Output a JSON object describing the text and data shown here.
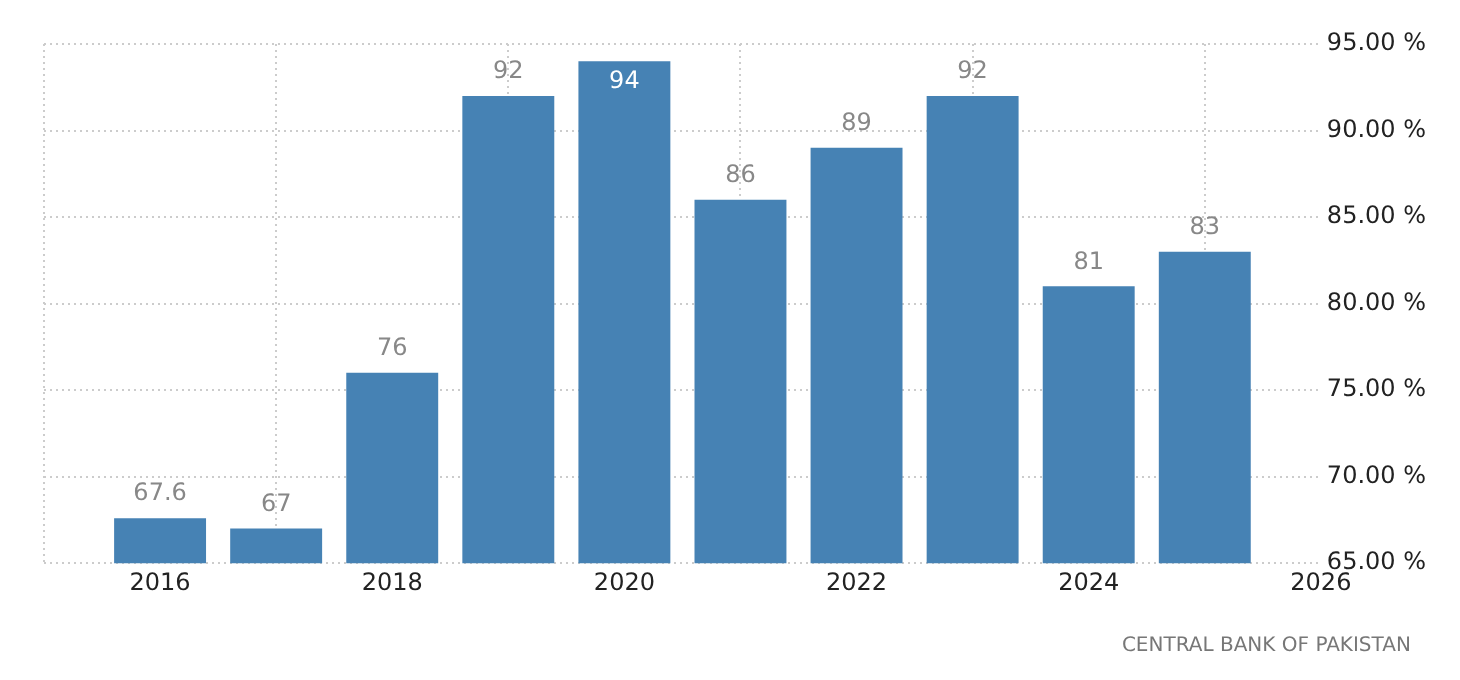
{
  "chart_data": {
    "type": "bar",
    "x": [
      2016,
      2017,
      2018,
      2019,
      2020,
      2021,
      2022,
      2023,
      2024,
      2025
    ],
    "values": [
      67.6,
      67,
      76,
      92,
      94,
      86,
      89,
      92,
      81,
      83
    ],
    "color": "#4682b4",
    "xlim": [
      2015,
      2026
    ],
    "xticks": [
      2016,
      2018,
      2020,
      2022,
      2024,
      2026
    ],
    "ylim": [
      65,
      95
    ],
    "yticks": [
      {
        "value": 65,
        "label": "65.00 %"
      },
      {
        "value": 70,
        "label": "70.00 %"
      },
      {
        "value": 75,
        "label": "75.00 %"
      },
      {
        "value": 80,
        "label": "80.00 %"
      },
      {
        "value": 85,
        "label": "85.00 %"
      },
      {
        "value": 90,
        "label": "90.00 %"
      },
      {
        "value": 95,
        "label": "95.00 %"
      }
    ],
    "grid": true,
    "legend": false,
    "data_labels": true,
    "annotations": [
      "CENTRAL BANK OF PAKISTAN"
    ]
  }
}
